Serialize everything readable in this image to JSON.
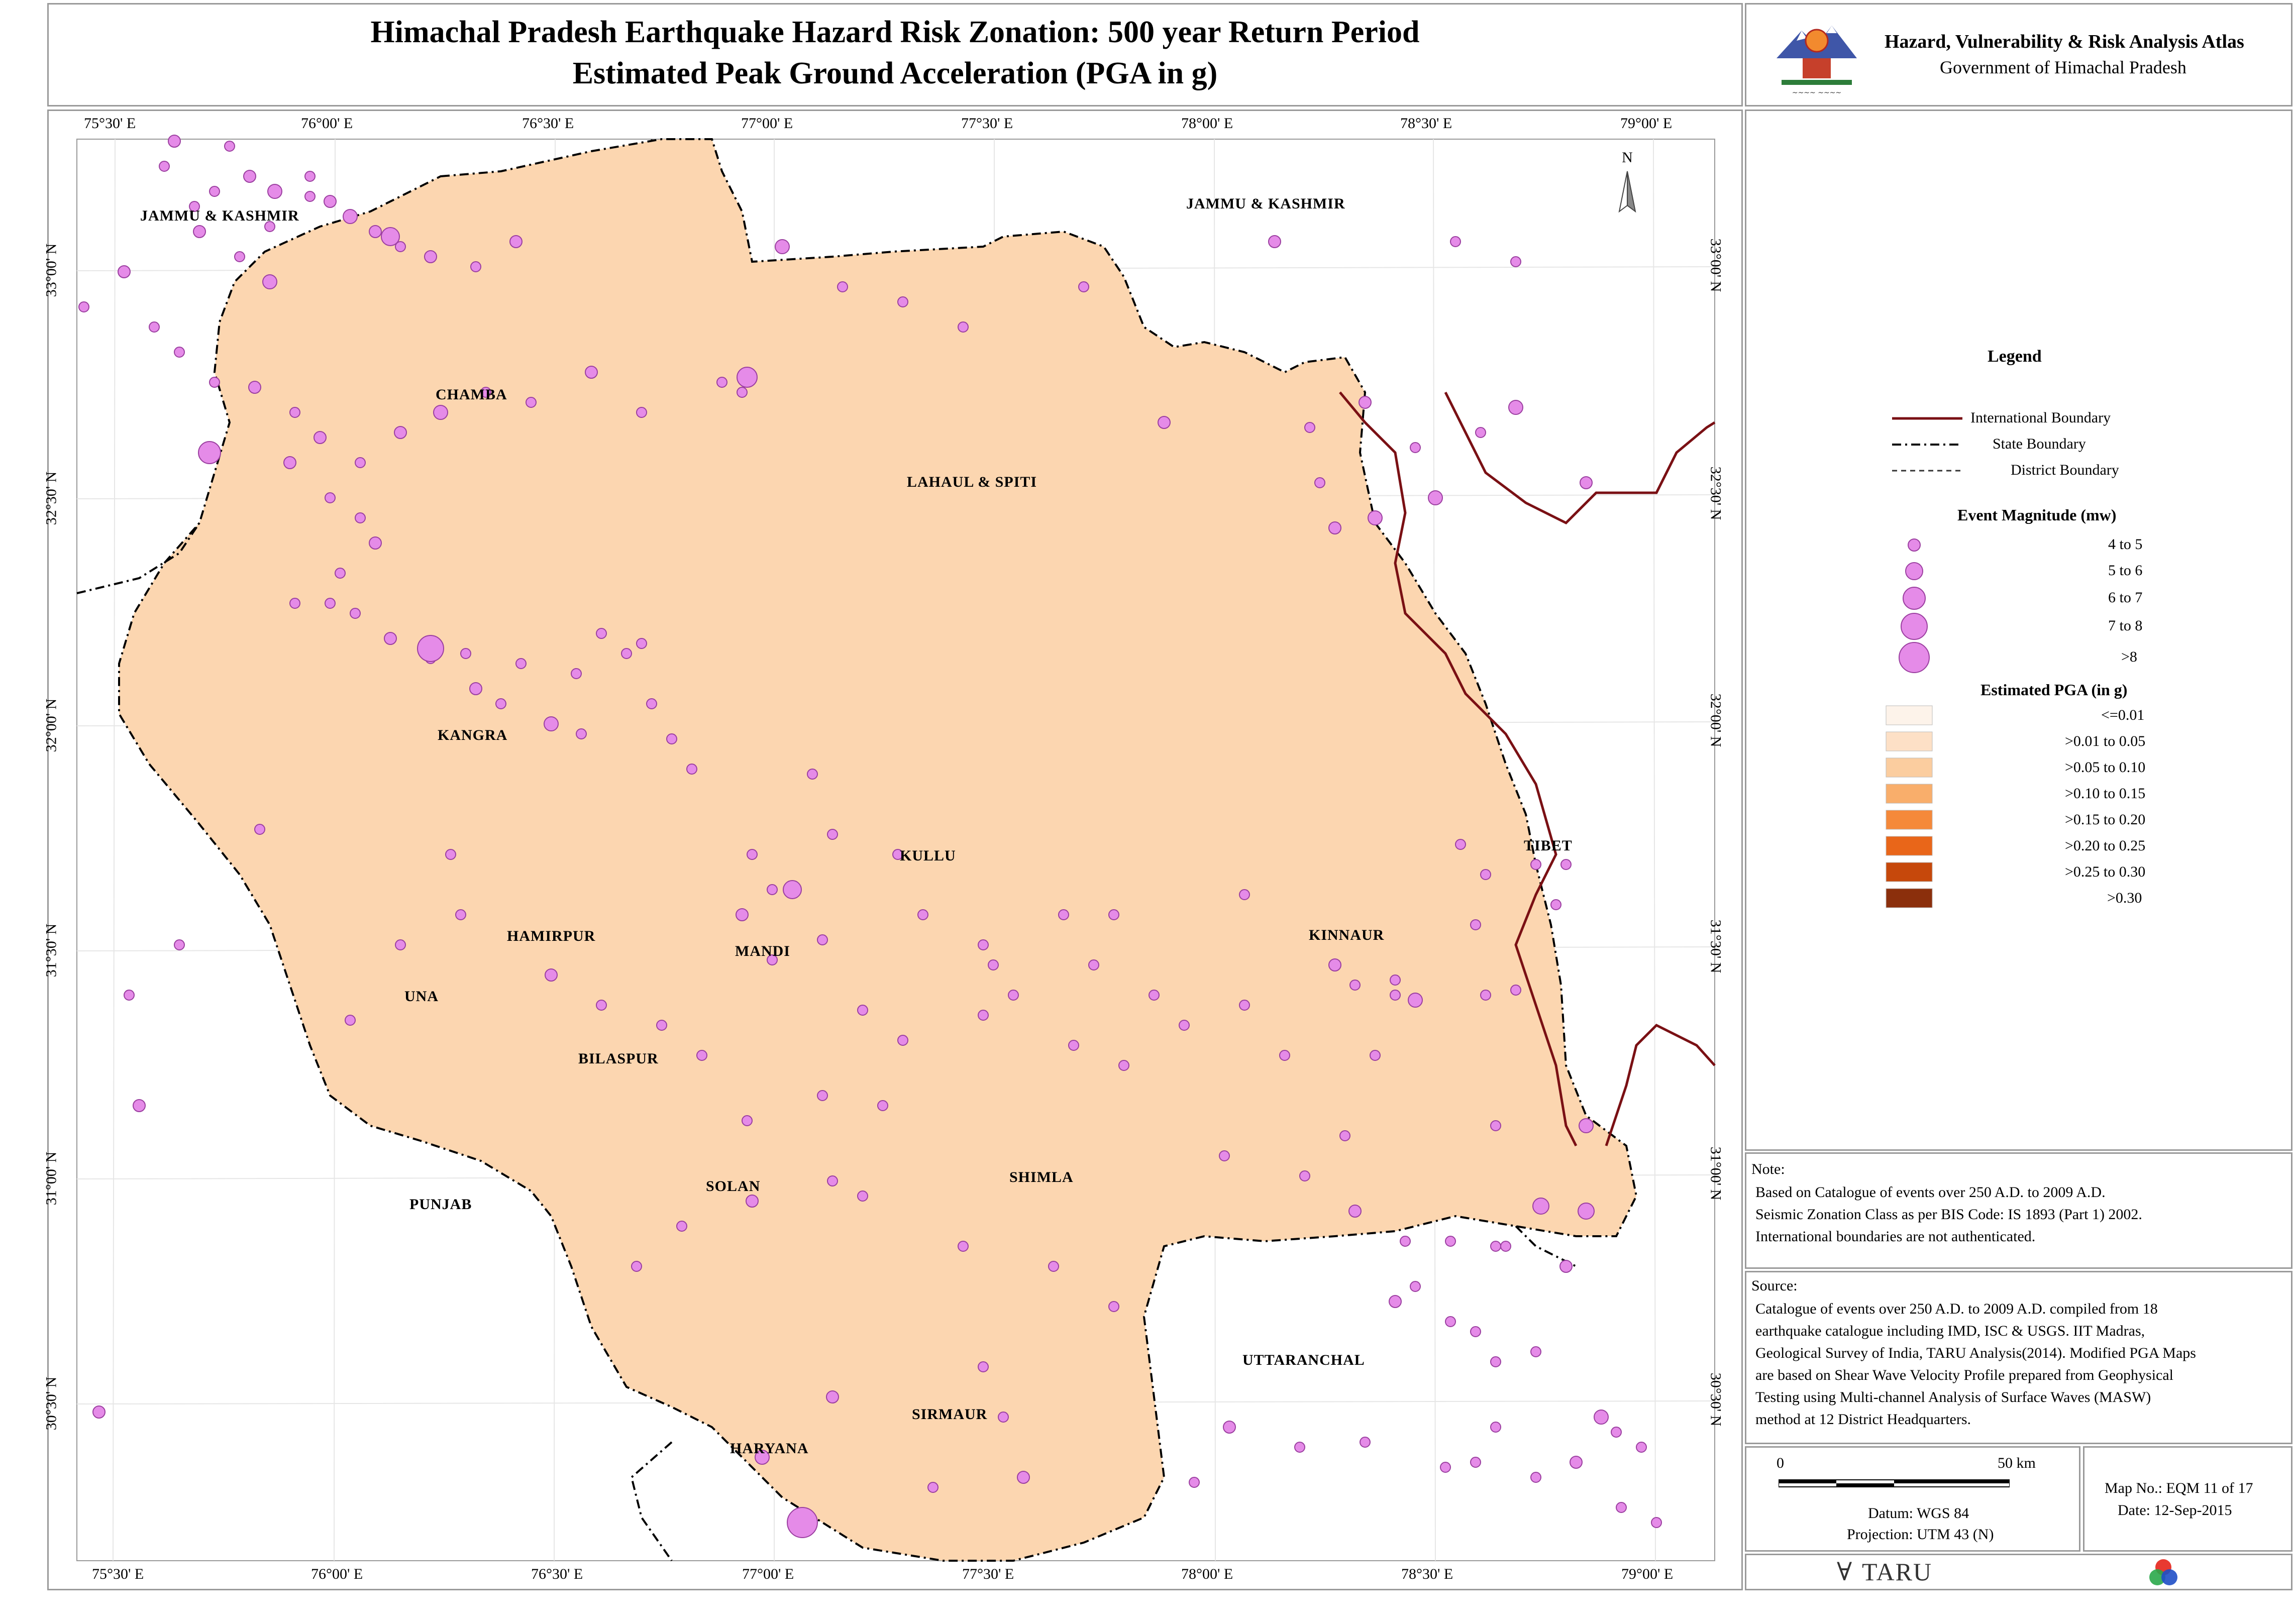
{
  "title": {
    "line1": "Himachal Pradesh Earthquake Hazard Risk Zonation: 500 year Return Period",
    "line2": "Estimated Peak Ground Acceleration (PGA in g)"
  },
  "atlas": {
    "name": "Hazard, Vulnerability & Risk Analysis Atlas",
    "govt": "Government of Himachal Pradesh"
  },
  "map": {
    "north_label": "N",
    "lon_ticks": [
      "75°30' E",
      "76°00' E",
      "76°30' E",
      "77°00' E",
      "77°30' E",
      "78°00' E",
      "78°30' E",
      "79°00' E"
    ],
    "lat_ticks": [
      "33°00' N",
      "32°30' N",
      "32°00' N",
      "31°30' N",
      "31°00' N",
      "30°30' N"
    ],
    "region_labels": {
      "jk_west": "JAMMU & KASHMIR",
      "jk_east": "JAMMU & KASHMIR",
      "chamba": "CHAMBA",
      "lahaul": "LAHAUL & SPITI",
      "kangra": "KANGRA",
      "kullu": "KULLU",
      "tibet": "TIBET",
      "hamirpur": "HAMIRPUR",
      "mandi": "MANDI",
      "kinnaur": "KINNAUR",
      "una": "UNA",
      "bilaspur": "BILASPUR",
      "shimla": "SHIMLA",
      "solan": "SOLAN",
      "punjab": "PUNJAB",
      "uttaranchal": "UTTARANCHAL",
      "sirmaur": "SIRMAUR",
      "haryana": "HARYANA"
    }
  },
  "legend": {
    "title": "Legend",
    "boundaries": [
      {
        "label": "International Boundary",
        "style": "intl"
      },
      {
        "label": "State Boundary",
        "style": "state"
      },
      {
        "label": "District Boundary",
        "style": "district"
      }
    ],
    "magnitude_title": "Event Magnitude (mw)",
    "magnitudes": [
      "4 to 5",
      "5 to 6",
      "6 to 7",
      "7 to 8",
      ">8"
    ],
    "pga_title": "Estimated PGA (in g)",
    "pga_classes": [
      {
        "label": "<=0.01",
        "color": "#fdf3ea"
      },
      {
        "label": ">0.01 to 0.05",
        "color": "#fde0c6"
      },
      {
        "label": ">0.05 to 0.10",
        "color": "#fbcd9f"
      },
      {
        "label": ">0.10 to 0.15",
        "color": "#f9ae6b"
      },
      {
        "label": ">0.15 to 0.20",
        "color": "#f5893a"
      },
      {
        "label": ">0.20 to 0.25",
        "color": "#e96619"
      },
      {
        "label": ">0.25 to 0.30",
        "color": "#c6480b"
      },
      {
        "label": ">0.30",
        "color": "#8b2f0c"
      }
    ]
  },
  "note": {
    "heading": "Note:",
    "lines": [
      "Based on Catalogue of events over 250 A.D. to 2009 A.D.",
      "Seismic Zonation Class as per BIS Code: IS 1893 (Part 1) 2002.",
      "International boundaries are not authenticated."
    ]
  },
  "source": {
    "heading": "Source:",
    "lines": [
      "Catalogue of events over 250 A.D. to 2009 A.D. compiled from 18",
      "earthquake catalogue including IMD, ISC & USGS. IIT Madras,",
      "Geological Survey of India, TARU Analysis(2014). Modified PGA Maps",
      "are based on Shear Wave Velocity Profile prepared from Geophysical",
      "Testing using Multi-channel Analysis of Surface Waves (MASW)",
      "method at 12 District Headquarters."
    ]
  },
  "scale": {
    "start": "0",
    "end": "50 km",
    "datum": "Datum: WGS 84",
    "projection": "Projection: UTM 43 (N)"
  },
  "mapno": {
    "number": "Map No.: EQM 11 of 17",
    "date": "Date: 12-Sep-2015"
  },
  "footer": {
    "taru": "TARU"
  },
  "colors": {
    "event_fill": "#e58be8",
    "event_stroke": "#9b3fa0",
    "intl_boundary": "#7a1014",
    "panel_border": "#9a9a9a"
  }
}
